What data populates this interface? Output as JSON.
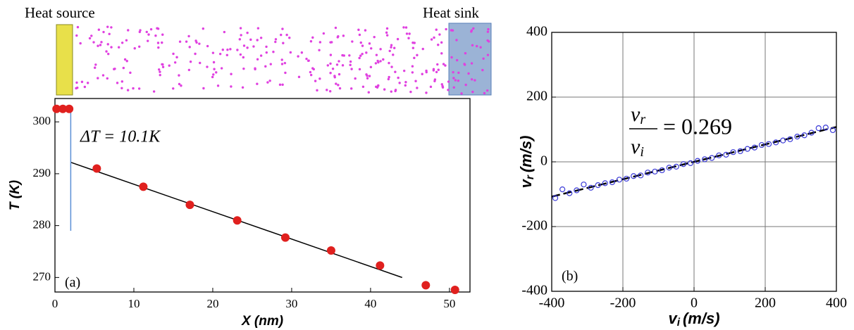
{
  "diagram": {
    "labels": [
      "Heat source",
      "Heat sink"
    ]
  },
  "chart_data": [
    {
      "type": "scatter",
      "panel_label": "(a)",
      "xlabel": "X (nm)",
      "ylabel": "T (K)",
      "annotation": "ΔT = 10.1K",
      "x": [
        0.2,
        1,
        1.8,
        5.3,
        11.2,
        17.1,
        23.1,
        29.2,
        35,
        41.2,
        47,
        50.7
      ],
      "values": [
        302.5,
        302.5,
        302.5,
        291,
        287.5,
        284,
        281,
        277.7,
        275.2,
        272.3,
        268.5,
        267.6
      ],
      "color": "#e0201e",
      "fit_line": {
        "x": [
          2,
          44
        ],
        "y": [
          292.2,
          270
        ],
        "color": "#000000"
      },
      "delta_line": {
        "x": [
          2,
          2
        ],
        "y": [
          302.5,
          279
        ],
        "color": "#5b8fd6"
      },
      "xlim": [
        0,
        52.6
      ],
      "ylim": [
        267.2,
        304.5
      ],
      "xticks": [
        0,
        10,
        20,
        30,
        40,
        50
      ],
      "yticks": [
        270,
        280,
        290,
        300
      ],
      "grid": false
    },
    {
      "type": "scatter",
      "panel_label": "(b)",
      "xlabel": {
        "symbol": "v",
        "sub": "i",
        "unit": "(m/s)"
      },
      "ylabel": {
        "symbol": "v",
        "sub": "r",
        "unit": "(m/s)"
      },
      "equation": {
        "num": "v",
        "num_sub": "r",
        "den": "v",
        "den_sub": "i",
        "rhs": "= 0.269"
      },
      "x": [
        -390,
        -370,
        -350,
        -330,
        -310,
        -290,
        -270,
        -250,
        -230,
        -210,
        -190,
        -170,
        -150,
        -130,
        -110,
        -90,
        -70,
        -50,
        -30,
        -10,
        10,
        30,
        50,
        70,
        90,
        110,
        130,
        150,
        170,
        190,
        210,
        230,
        250,
        270,
        290,
        310,
        330,
        350,
        370,
        390
      ],
      "values": [
        -112,
        -85,
        -97,
        -88,
        -70,
        -80,
        -72,
        -66,
        -63,
        -55,
        -52,
        -44,
        -42,
        -33,
        -30,
        -26,
        -18,
        -15,
        -7,
        -4,
        3,
        8,
        12,
        20,
        22,
        30,
        33,
        40,
        44,
        52,
        55,
        60,
        66,
        70,
        78,
        82,
        90,
        104,
        106,
        98
      ],
      "color": "#3a3ad8",
      "hollow": true,
      "fit_line": {
        "x": [
          -400,
          400
        ],
        "y": [
          -107.6,
          107.6
        ],
        "color": "#000000",
        "dashed": true
      },
      "xlim": [
        -400,
        400
      ],
      "ylim": [
        -400,
        400
      ],
      "xticks": [
        -400,
        -200,
        0,
        200,
        400
      ],
      "yticks": [
        -400,
        -200,
        0,
        200,
        400
      ],
      "grid": true
    }
  ]
}
